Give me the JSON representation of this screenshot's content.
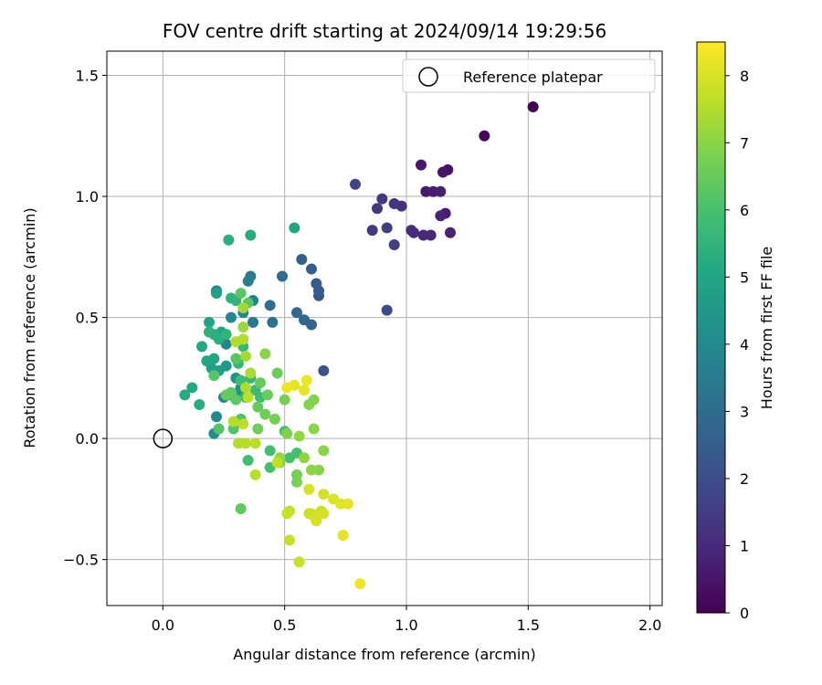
{
  "chart_data": {
    "type": "scatter",
    "title": "FOV centre drift starting at 2024/09/14 19:29:56",
    "xlabel": "Angular distance from reference (arcmin)",
    "ylabel": "Rotation from reference (arcmin)",
    "xlim": [
      -0.23,
      2.05
    ],
    "ylim": [
      -0.69,
      1.6
    ],
    "xticks": [
      0.0,
      0.5,
      1.0,
      1.5,
      2.0
    ],
    "xtick_labels": [
      "0.0",
      "0.5",
      "1.0",
      "1.5",
      "2.0"
    ],
    "yticks": [
      -0.5,
      0.0,
      0.5,
      1.0,
      1.5
    ],
    "ytick_labels": [
      "−0.5",
      "0.0",
      "0.5",
      "1.0",
      "1.5"
    ],
    "grid": true,
    "legend": {
      "position": "top-right",
      "entries": [
        "Reference platepar"
      ]
    },
    "reference_point": {
      "x": 0.0,
      "y": 0.0
    },
    "colorbar": {
      "label": "Hours from first FF file",
      "colormap": "viridis",
      "range": [
        0,
        8.5
      ],
      "ticks": [
        0,
        1,
        2,
        3,
        4,
        5,
        6,
        7,
        8
      ],
      "tick_labels": [
        "0",
        "1",
        "2",
        "3",
        "4",
        "5",
        "6",
        "7",
        "8"
      ]
    },
    "points": [
      [
        1.52,
        1.37,
        0.0
      ],
      [
        1.32,
        1.25,
        0.2
      ],
      [
        1.17,
        1.11,
        0.45
      ],
      [
        1.15,
        1.1,
        0.5
      ],
      [
        1.06,
        1.13,
        0.55
      ],
      [
        1.08,
        1.02,
        0.6
      ],
      [
        1.11,
        1.02,
        0.65
      ],
      [
        1.14,
        1.02,
        0.75
      ],
      [
        1.16,
        0.93,
        0.7
      ],
      [
        1.18,
        0.85,
        0.8
      ],
      [
        1.14,
        0.92,
        0.85
      ],
      [
        1.1,
        0.84,
        0.95
      ],
      [
        1.07,
        0.84,
        1.0
      ],
      [
        1.03,
        0.85,
        1.05
      ],
      [
        1.02,
        0.86,
        1.1
      ],
      [
        0.98,
        0.96,
        1.2
      ],
      [
        0.95,
        0.97,
        1.3
      ],
      [
        0.9,
        0.99,
        1.35
      ],
      [
        0.88,
        0.95,
        1.4
      ],
      [
        0.86,
        0.86,
        1.45
      ],
      [
        0.92,
        0.87,
        1.55
      ],
      [
        0.95,
        0.8,
        1.6
      ],
      [
        0.79,
        1.05,
        1.7
      ],
      [
        0.92,
        0.53,
        1.9
      ],
      [
        0.66,
        0.28,
        2.2
      ],
      [
        0.64,
        0.59,
        2.3
      ],
      [
        0.64,
        0.61,
        2.35
      ],
      [
        0.63,
        0.64,
        2.4
      ],
      [
        0.61,
        0.7,
        2.5
      ],
      [
        0.57,
        0.74,
        2.6
      ],
      [
        0.61,
        0.47,
        2.7
      ],
      [
        0.58,
        0.49,
        2.8
      ],
      [
        0.55,
        0.52,
        2.9
      ],
      [
        0.49,
        0.67,
        3.0
      ],
      [
        0.44,
        0.55,
        3.1
      ],
      [
        0.45,
        0.48,
        3.2
      ],
      [
        0.37,
        0.48,
        3.4
      ],
      [
        0.36,
        0.67,
        3.5
      ],
      [
        0.35,
        0.65,
        3.6
      ],
      [
        0.37,
        0.57,
        3.7
      ],
      [
        0.33,
        0.52,
        3.8
      ],
      [
        0.28,
        0.5,
        3.9
      ],
      [
        0.22,
        0.61,
        4.0
      ],
      [
        0.26,
        0.39,
        3.8
      ],
      [
        0.25,
        0.17,
        3.9
      ],
      [
        0.22,
        0.09,
        4.0
      ],
      [
        0.21,
        0.02,
        4.1
      ],
      [
        0.32,
        0.21,
        4.2
      ],
      [
        0.3,
        0.25,
        4.3
      ],
      [
        0.31,
        0.19,
        4.4
      ],
      [
        0.28,
        0.18,
        4.5
      ],
      [
        0.26,
        0.3,
        4.6
      ],
      [
        0.23,
        0.28,
        4.7
      ],
      [
        0.2,
        0.29,
        4.8
      ],
      [
        0.19,
        0.48,
        4.9
      ],
      [
        0.22,
        0.6,
        4.85
      ],
      [
        0.24,
        0.44,
        4.95
      ],
      [
        0.21,
        0.33,
        5.0
      ],
      [
        0.18,
        0.32,
        5.05
      ],
      [
        0.16,
        0.38,
        5.1
      ],
      [
        0.12,
        0.21,
        5.15
      ],
      [
        0.09,
        0.18,
        5.2
      ],
      [
        0.15,
        0.14,
        5.25
      ],
      [
        0.23,
        0.41,
        5.3
      ],
      [
        0.21,
        0.43,
        5.35
      ],
      [
        0.19,
        0.44,
        5.4
      ],
      [
        0.26,
        0.43,
        5.5
      ],
      [
        0.28,
        0.58,
        5.5
      ],
      [
        0.3,
        0.57,
        5.55
      ],
      [
        0.54,
        0.87,
        5.0
      ],
      [
        0.27,
        0.82,
        5.3
      ],
      [
        0.36,
        0.84,
        5.2
      ],
      [
        0.33,
        0.38,
        5.6
      ],
      [
        0.31,
        0.31,
        5.6
      ],
      [
        0.36,
        0.25,
        5.65
      ],
      [
        0.34,
        0.17,
        5.7
      ],
      [
        0.4,
        0.17,
        5.8
      ],
      [
        0.38,
        0.2,
        5.75
      ],
      [
        0.32,
        0.24,
        5.85
      ],
      [
        0.35,
        -0.09,
        5.9
      ],
      [
        0.44,
        -0.05,
        5.9
      ],
      [
        0.44,
        -0.12,
        5.95
      ],
      [
        0.52,
        -0.08,
        6.0
      ],
      [
        0.55,
        -0.06,
        6.0
      ],
      [
        0.5,
        0.03,
        6.05
      ],
      [
        0.32,
        0.08,
        6.1
      ],
      [
        0.29,
        0.04,
        6.15
      ],
      [
        0.23,
        0.04,
        6.2
      ],
      [
        0.21,
        0.26,
        6.25
      ],
      [
        0.3,
        0.33,
        6.3
      ],
      [
        0.32,
        0.6,
        6.3
      ],
      [
        0.35,
        0.56,
        6.3
      ],
      [
        0.3,
        0.16,
        6.35
      ],
      [
        0.28,
        0.19,
        6.4
      ],
      [
        0.26,
        0.18,
        6.45
      ],
      [
        0.32,
        -0.29,
        6.4
      ],
      [
        0.39,
        0.13,
        6.5
      ],
      [
        0.4,
        0.23,
        6.5
      ],
      [
        0.43,
        0.18,
        6.55
      ],
      [
        0.39,
        0.04,
        6.6
      ],
      [
        0.47,
        0.27,
        6.6
      ],
      [
        0.42,
        0.1,
        6.65
      ],
      [
        0.5,
        0.16,
        6.7
      ],
      [
        0.46,
        0.08,
        6.7
      ],
      [
        0.55,
        -0.15,
        6.75
      ],
      [
        0.55,
        -0.18,
        6.8
      ],
      [
        0.48,
        -0.1,
        6.85
      ],
      [
        0.51,
        0.02,
        6.85
      ],
      [
        0.62,
        0.16,
        6.9
      ],
      [
        0.6,
        0.14,
        6.9
      ],
      [
        0.64,
        -0.13,
        6.95
      ],
      [
        0.62,
        0.04,
        7.0
      ],
      [
        0.66,
        -0.05,
        7.0
      ],
      [
        0.58,
        -0.08,
        7.05
      ],
      [
        0.61,
        -0.13,
        7.05
      ],
      [
        0.56,
        0.01,
        7.1
      ],
      [
        0.48,
        -0.08,
        7.1
      ],
      [
        0.42,
        0.35,
        7.0
      ],
      [
        0.33,
        0.46,
        7.2
      ],
      [
        0.33,
        0.54,
        7.3
      ],
      [
        0.34,
        0.34,
        7.35
      ],
      [
        0.36,
        0.27,
        7.4
      ],
      [
        0.34,
        0.21,
        7.45
      ],
      [
        0.33,
        0.41,
        7.5
      ],
      [
        0.3,
        0.4,
        7.5
      ],
      [
        0.29,
        0.07,
        7.55
      ],
      [
        0.31,
        -0.02,
        7.55
      ],
      [
        0.34,
        -0.02,
        7.6
      ],
      [
        0.38,
        -0.02,
        7.6
      ],
      [
        0.38,
        -0.15,
        7.6
      ],
      [
        0.33,
        0.06,
        7.65
      ],
      [
        0.35,
        0.17,
        7.65
      ],
      [
        0.47,
        -0.1,
        7.7
      ],
      [
        0.52,
        -0.3,
        7.7
      ],
      [
        0.52,
        -0.42,
        7.75
      ],
      [
        0.56,
        -0.51,
        7.8
      ],
      [
        0.51,
        -0.31,
        7.8
      ],
      [
        0.65,
        -0.3,
        7.85
      ],
      [
        0.66,
        -0.23,
        7.9
      ],
      [
        0.66,
        -0.31,
        7.9
      ],
      [
        0.62,
        -0.32,
        7.95
      ],
      [
        0.63,
        -0.34,
        8.0
      ],
      [
        0.61,
        -0.31,
        8.0
      ],
      [
        0.6,
        -0.21,
        8.0
      ],
      [
        0.7,
        -0.25,
        8.05
      ],
      [
        0.73,
        -0.27,
        8.1
      ],
      [
        0.76,
        -0.27,
        8.15
      ],
      [
        0.74,
        -0.4,
        8.15
      ],
      [
        0.81,
        -0.6,
        8.3
      ],
      [
        0.54,
        0.22,
        8.2
      ],
      [
        0.58,
        0.2,
        8.2
      ],
      [
        0.59,
        0.24,
        8.25
      ],
      [
        0.51,
        0.21,
        8.3
      ],
      [
        0.6,
        -0.31,
        7.85
      ]
    ]
  }
}
